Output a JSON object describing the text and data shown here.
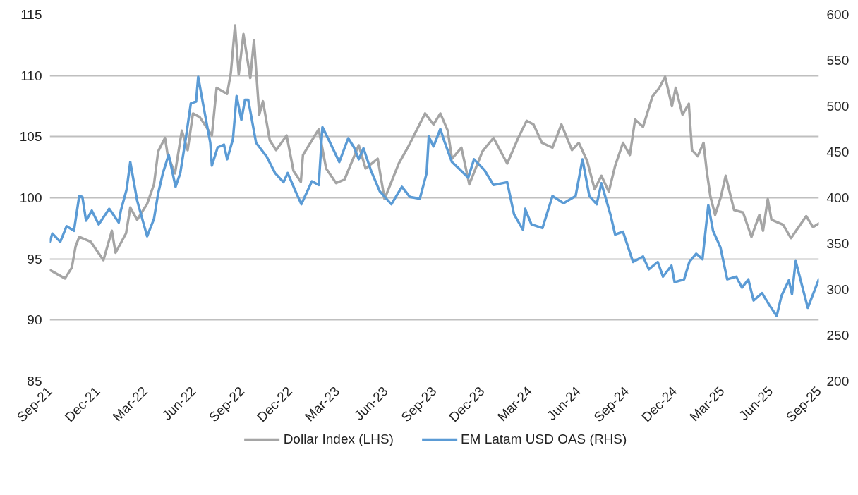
{
  "chart_data": {
    "type": "line",
    "xlim": [
      "2021-09-01",
      "2025-09-01"
    ],
    "xticks": [
      {
        "value": "2021-09-01",
        "label": "Sep-21"
      },
      {
        "value": "2021-12-01",
        "label": "Dec-21"
      },
      {
        "value": "2022-03-01",
        "label": "Mar-22"
      },
      {
        "value": "2022-06-01",
        "label": "Jun-22"
      },
      {
        "value": "2022-09-01",
        "label": "Sep-22"
      },
      {
        "value": "2022-12-01",
        "label": "Dec-22"
      },
      {
        "value": "2023-03-01",
        "label": "Mar-23"
      },
      {
        "value": "2023-06-01",
        "label": "Jun-23"
      },
      {
        "value": "2023-09-01",
        "label": "Sep-23"
      },
      {
        "value": "2023-12-01",
        "label": "Dec-23"
      },
      {
        "value": "2024-03-01",
        "label": "Mar-24"
      },
      {
        "value": "2024-06-01",
        "label": "Jun-24"
      },
      {
        "value": "2024-09-01",
        "label": "Sep-24"
      },
      {
        "value": "2024-12-01",
        "label": "Dec-24"
      },
      {
        "value": "2025-03-01",
        "label": "Mar-25"
      },
      {
        "value": "2025-06-01",
        "label": "Jun-25"
      },
      {
        "value": "2025-09-01",
        "label": "Sep-25"
      }
    ],
    "ylim": [
      85,
      115
    ],
    "yticks": [
      85,
      90,
      95,
      100,
      105,
      110,
      115
    ],
    "y2lim": [
      200,
      600
    ],
    "y2ticks": [
      200,
      250,
      300,
      350,
      400,
      450,
      500,
      550,
      600
    ],
    "grid": "y",
    "legend": "bottom",
    "marker": "none",
    "line_style": "solid",
    "series": [
      {
        "name": "Dollar Index (LHS)",
        "color": "#a5a5a5",
        "x": [
          "2021-09-01",
          "2021-09-30",
          "2021-10-13",
          "2021-10-20",
          "2021-10-27",
          "2021-11-18",
          "2021-12-12",
          "2021-12-28",
          "2022-01-04",
          "2022-01-24",
          "2022-02-01",
          "2022-02-14",
          "2022-03-05",
          "2022-03-18",
          "2022-03-26",
          "2022-04-08",
          "2022-04-13",
          "2022-04-27",
          "2022-05-10",
          "2022-05-21",
          "2022-05-31",
          "2022-06-13",
          "2022-07-06",
          "2022-07-15",
          "2022-08-04",
          "2022-08-11",
          "2022-08-19",
          "2022-08-26",
          "2022-09-04",
          "2022-09-17",
          "2022-09-24",
          "2022-10-04",
          "2022-10-11",
          "2022-10-24",
          "2022-11-05",
          "2022-11-25",
          "2022-12-08",
          "2022-12-22",
          "2022-12-26",
          "2023-01-12",
          "2023-01-25",
          "2023-02-08",
          "2023-02-27",
          "2023-03-15",
          "2023-04-11",
          "2023-04-24",
          "2023-05-17",
          "2023-05-30",
          "2023-06-26",
          "2023-07-13",
          "2023-07-26",
          "2023-08-15",
          "2023-08-31",
          "2023-09-13",
          "2023-09-27",
          "2023-10-05",
          "2023-10-23",
          "2023-11-07",
          "2023-12-02",
          "2023-12-23",
          "2024-01-18",
          "2024-02-08",
          "2024-02-24",
          "2024-03-08",
          "2024-03-24",
          "2024-04-13",
          "2024-04-30",
          "2024-05-20",
          "2024-06-02",
          "2024-06-18",
          "2024-07-02",
          "2024-07-15",
          "2024-07-29",
          "2024-08-10",
          "2024-08-25",
          "2024-09-07",
          "2024-09-17",
          "2024-10-02",
          "2024-10-20",
          "2024-11-02",
          "2024-11-13",
          "2024-11-26",
          "2024-12-03",
          "2024-12-16",
          "2024-12-28",
          "2025-01-03",
          "2025-01-14",
          "2025-01-25",
          "2025-01-31",
          "2025-02-07",
          "2025-02-16",
          "2025-02-27",
          "2025-03-08",
          "2025-03-24",
          "2025-04-10",
          "2025-04-26",
          "2025-05-11",
          "2025-05-18",
          "2025-05-27",
          "2025-06-03",
          "2025-06-25",
          "2025-07-10",
          "2025-08-08",
          "2025-08-21",
          "2025-09-01"
        ],
        "values": [
          94.1,
          93.4,
          94.3,
          96.0,
          96.8,
          96.4,
          94.9,
          97.3,
          95.5,
          97.1,
          99.2,
          98.2,
          99.5,
          101.1,
          103.8,
          104.9,
          103.5,
          102.0,
          105.5,
          103.9,
          106.9,
          106.6,
          105.1,
          109.0,
          108.5,
          110.2,
          114.1,
          110.1,
          113.4,
          109.8,
          112.9,
          106.8,
          107.9,
          104.7,
          103.9,
          105.1,
          102.2,
          101.3,
          103.5,
          104.7,
          105.6,
          102.4,
          101.2,
          101.5,
          104.3,
          102.4,
          103.2,
          99.9,
          102.8,
          104.1,
          105.2,
          106.9,
          106.0,
          106.9,
          105.5,
          103.2,
          104.1,
          101.1,
          103.8,
          104.9,
          102.8,
          104.9,
          106.3,
          106.0,
          104.5,
          104.1,
          106.0,
          103.9,
          104.5,
          103.0,
          100.7,
          101.8,
          100.5,
          102.6,
          104.5,
          103.5,
          106.4,
          105.8,
          108.3,
          109.0,
          109.9,
          107.5,
          109.0,
          106.8,
          107.7,
          103.9,
          103.4,
          104.5,
          102.2,
          100.1,
          98.6,
          100.1,
          101.8,
          99.0,
          98.8,
          96.8,
          98.6,
          97.3,
          99.9,
          98.2,
          97.8,
          96.7,
          98.5,
          97.6,
          97.9
        ]
      },
      {
        "name": "EM Latam USD OAS (RHS)",
        "color": "#5b9bd5",
        "axis": "y2",
        "x": [
          "2021-09-01",
          "2021-09-06",
          "2021-09-21",
          "2021-10-03",
          "2021-10-17",
          "2021-10-27",
          "2021-11-02",
          "2021-11-09",
          "2021-11-20",
          "2021-12-03",
          "2021-12-23",
          "2022-01-10",
          "2022-01-14",
          "2022-01-25",
          "2022-02-01",
          "2022-02-14",
          "2022-03-05",
          "2022-03-18",
          "2022-03-26",
          "2022-04-04",
          "2022-04-15",
          "2022-04-28",
          "2022-05-07",
          "2022-05-18",
          "2022-05-27",
          "2022-06-06",
          "2022-06-10",
          "2022-06-20",
          "2022-07-03",
          "2022-07-06",
          "2022-07-17",
          "2022-07-29",
          "2022-08-04",
          "2022-08-15",
          "2022-08-22",
          "2022-08-31",
          "2022-09-07",
          "2022-09-13",
          "2022-09-28",
          "2022-10-18",
          "2022-11-03",
          "2022-11-19",
          "2022-11-27",
          "2022-12-12",
          "2022-12-23",
          "2023-01-12",
          "2023-01-25",
          "2023-02-01",
          "2023-02-14",
          "2023-03-05",
          "2023-03-22",
          "2023-04-02",
          "2023-04-11",
          "2023-04-20",
          "2023-05-04",
          "2023-05-21",
          "2023-06-12",
          "2023-07-02",
          "2023-07-17",
          "2023-08-05",
          "2023-08-18",
          "2023-08-22",
          "2023-08-31",
          "2023-09-13",
          "2023-09-21",
          "2023-10-05",
          "2023-10-18",
          "2023-11-05",
          "2023-11-16",
          "2023-12-06",
          "2023-12-23",
          "2024-01-18",
          "2024-01-31",
          "2024-02-17",
          "2024-02-21",
          "2024-03-04",
          "2024-03-25",
          "2024-04-13",
          "2024-05-04",
          "2024-05-27",
          "2024-06-09",
          "2024-06-22",
          "2024-07-06",
          "2024-07-15",
          "2024-08-01",
          "2024-08-10",
          "2024-08-25",
          "2024-09-13",
          "2024-10-02",
          "2024-10-13",
          "2024-10-30",
          "2024-11-09",
          "2024-11-25",
          "2024-12-01",
          "2024-12-19",
          "2024-12-29",
          "2025-01-11",
          "2025-01-23",
          "2025-02-03",
          "2025-02-12",
          "2025-02-26",
          "2025-03-11",
          "2025-03-28",
          "2025-04-08",
          "2025-04-20",
          "2025-04-30",
          "2025-05-16",
          "2025-05-30",
          "2025-06-13",
          "2025-06-22",
          "2025-07-06",
          "2025-07-12",
          "2025-07-19",
          "2025-08-11",
          "2025-09-01"
        ],
        "values": [
          352,
          361,
          352,
          369,
          364,
          402,
          401,
          375,
          386,
          371,
          388,
          373,
          386,
          409,
          439,
          397,
          358,
          377,
          405,
          427,
          447,
          412,
          427,
          467,
          503,
          505,
          532,
          500,
          460,
          435,
          455,
          458,
          442,
          464,
          511,
          485,
          507,
          507,
          460,
          445,
          427,
          417,
          427,
          407,
          393,
          418,
          414,
          477,
          462,
          439,
          465,
          455,
          442,
          454,
          430,
          407,
          393,
          412,
          401,
          399,
          427,
          467,
          456,
          475,
          461,
          439,
          432,
          422,
          442,
          430,
          414,
          417,
          382,
          365,
          388,
          371,
          367,
          402,
          394,
          402,
          442,
          402,
          393,
          416,
          382,
          360,
          363,
          330,
          336,
          322,
          330,
          314,
          326,
          308,
          311,
          330,
          339,
          333,
          392,
          364,
          346,
          311,
          314,
          302,
          311,
          288,
          296,
          283,
          271,
          293,
          310,
          295,
          331,
          280,
          311
        ]
      }
    ]
  }
}
